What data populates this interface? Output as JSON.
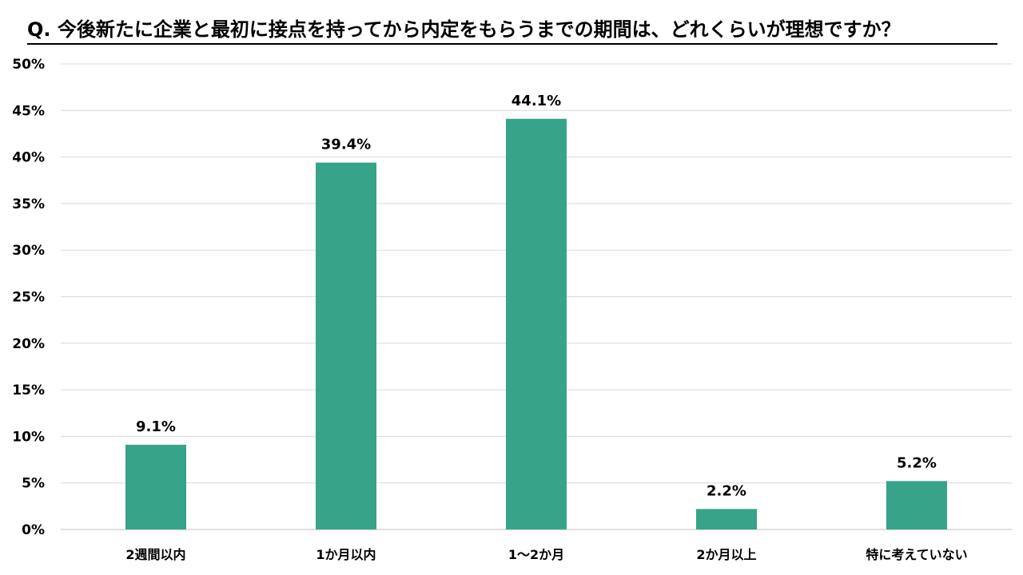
{
  "chart_data": {
    "type": "bar",
    "title": "Q. 今後新たに企業と最初に接点を持ってから内定をもらうまでの期間は、どれくらいが理想ですか？",
    "categories": [
      "2週間以内",
      "1か月以内",
      "1～2か月",
      "2か月以上",
      "特に考えていない"
    ],
    "values": [
      9.1,
      39.4,
      44.1,
      2.2,
      5.2
    ],
    "data_labels": [
      "9.1%",
      "39.4%",
      "44.1%",
      "2.2%",
      "5.2%"
    ],
    "xlabel": "",
    "ylabel": "",
    "ylim": [
      0,
      50
    ],
    "yticks": [
      0,
      5,
      10,
      15,
      20,
      25,
      30,
      35,
      40,
      45,
      50
    ],
    "ytick_labels": [
      "0%",
      "5%",
      "10%",
      "15%",
      "20%",
      "25%",
      "30%",
      "35%",
      "40%",
      "45%",
      "50%"
    ],
    "grid": true,
    "legend": "none",
    "bar_color": "#37a389",
    "grid_color": "#d9d9d9"
  }
}
